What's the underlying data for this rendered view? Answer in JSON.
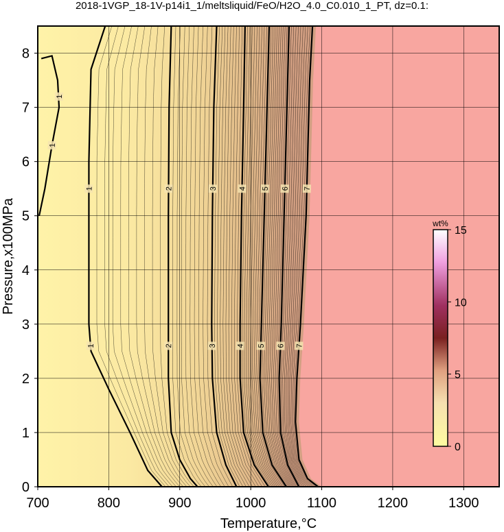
{
  "chart_data": {
    "type": "contour",
    "title": "2018-1VGP_18-1V-p14i1_1/meltsliquid/FeO/H2O_4.0_C0.010_1_PT, dz=0.1:",
    "x_label": "Temperature,°C",
    "y_label": "Pressure,x100MPa",
    "xlim": [
      700,
      1350
    ],
    "ylim": [
      0,
      8.5
    ],
    "xticks": [
      700,
      800,
      900,
      1000,
      1100,
      1200,
      1300
    ],
    "yticks": [
      0,
      1,
      2,
      3,
      4,
      5,
      6,
      7,
      8
    ],
    "grid": true,
    "contours": [
      {
        "level": 1,
        "x": [
          875,
          855,
          830,
          800,
          775,
          772,
          772,
          775,
          795
        ],
        "y": [
          0,
          0.3,
          1,
          1.8,
          2.5,
          3,
          6,
          7.7,
          8.5
        ]
      },
      {
        "level": 2,
        "x": [
          925,
          915,
          900,
          888,
          884,
          884,
          884,
          885,
          888
        ],
        "y": [
          0,
          0.15,
          0.5,
          1,
          2,
          3,
          5,
          7,
          8.5
        ]
      },
      {
        "level": 3,
        "x": [
          980,
          965,
          952,
          946,
          945,
          946,
          948,
          952
        ],
        "y": [
          0,
          0.4,
          1,
          2,
          3,
          5,
          7,
          8.5
        ]
      },
      {
        "level": 4,
        "x": [
          1025,
          1005,
          990,
          985,
          985,
          987,
          990,
          992
        ],
        "y": [
          0,
          0.4,
          1,
          2,
          3,
          5,
          7,
          8.5
        ]
      },
      {
        "level": 5,
        "x": [
          1050,
          1030,
          1017,
          1013,
          1015,
          1019,
          1023,
          1026
        ],
        "y": [
          0,
          0.4,
          1,
          2,
          3,
          5,
          7,
          8.5
        ]
      },
      {
        "level": 6,
        "x": [
          1068,
          1052,
          1042,
          1040,
          1043,
          1047,
          1051,
          1054
        ],
        "y": [
          0,
          0.4,
          1,
          2,
          3,
          5,
          7,
          8.5
        ]
      },
      {
        "level": 7,
        "x": [
          1095,
          1080,
          1068,
          1063,
          1065,
          1070,
          1078,
          1083,
          1087
        ],
        "y": [
          0,
          0.15,
          0.5,
          1.2,
          2,
          3,
          5,
          7.5,
          8.5
        ]
      },
      {
        "level": 1,
        "x": [
          702,
          710,
          720,
          730,
          728,
          720,
          705
        ],
        "y": [
          5.0,
          5.5,
          6.3,
          7.0,
          7.5,
          7.95,
          7.9
        ]
      }
    ],
    "colorbar": {
      "label": "wt%",
      "lim": [
        0,
        15
      ],
      "ticks": [
        0,
        5,
        10,
        15
      ]
    }
  }
}
